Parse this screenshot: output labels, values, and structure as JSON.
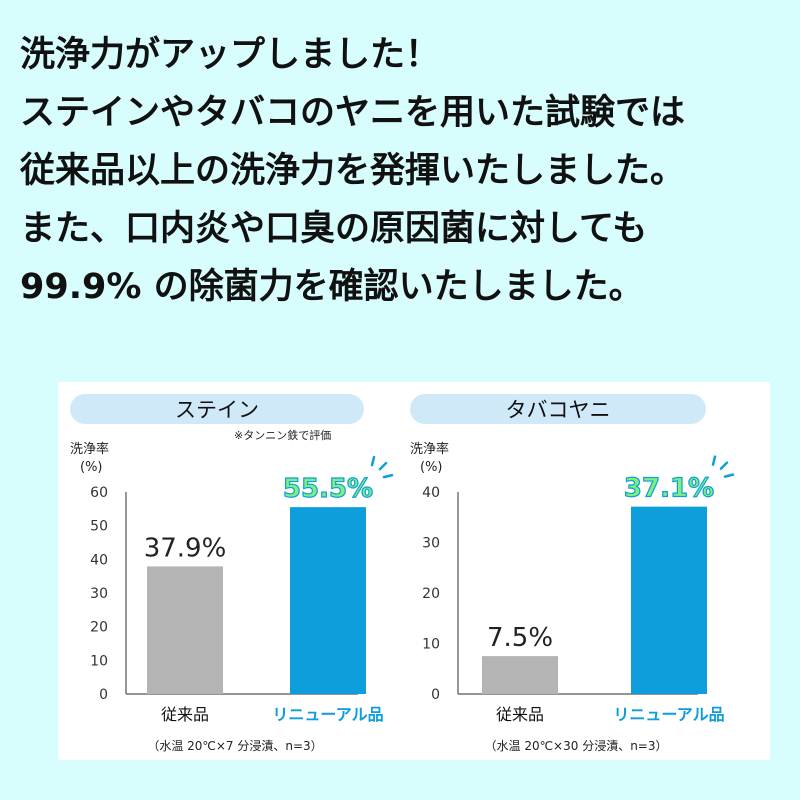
{
  "headline": [
    "洗浄力がアップしました！",
    "ステインやタバコのヤニを用いた試験では",
    "従来品以上の洗浄力を発揮いたしました。",
    "また、口内炎や口臭の原因菌に対しても",
    "99.9% の除菌力を確認いたしました。"
  ],
  "colors": {
    "background": "#d7fdfd",
    "pill": "#cfe9f8",
    "conventional_bar": "#b4b4b4",
    "renewal_bar": "#0d9edb",
    "highlight_label": "#7df07d"
  },
  "chart_data": [
    {
      "type": "bar",
      "title": "ステイン",
      "note": "※タンニン鉄で評価",
      "ylabel": "洗浄率",
      "yunit": "(%)",
      "ylim": [
        0,
        60
      ],
      "yticks": [
        "0",
        "10",
        "20",
        "30",
        "40",
        "50",
        "60"
      ],
      "categories": [
        "従来品",
        "リニューアル品"
      ],
      "values": [
        37.9,
        55.5
      ],
      "value_labels": [
        "37.9%",
        "55.5%"
      ],
      "footnote": "（水温 20℃×7 分浸漬、n=3）"
    },
    {
      "type": "bar",
      "title": "タバコヤニ",
      "ylabel": "洗浄率",
      "yunit": "(%)",
      "ylim": [
        0,
        40
      ],
      "yticks": [
        "0",
        "10",
        "20",
        "30",
        "40"
      ],
      "categories": [
        "従来品",
        "リニューアル品"
      ],
      "values": [
        7.5,
        37.1
      ],
      "value_labels": [
        "7.5%",
        "37.1%"
      ],
      "footnote": "（水温 20℃×30 分浸漬、n=3）"
    }
  ]
}
